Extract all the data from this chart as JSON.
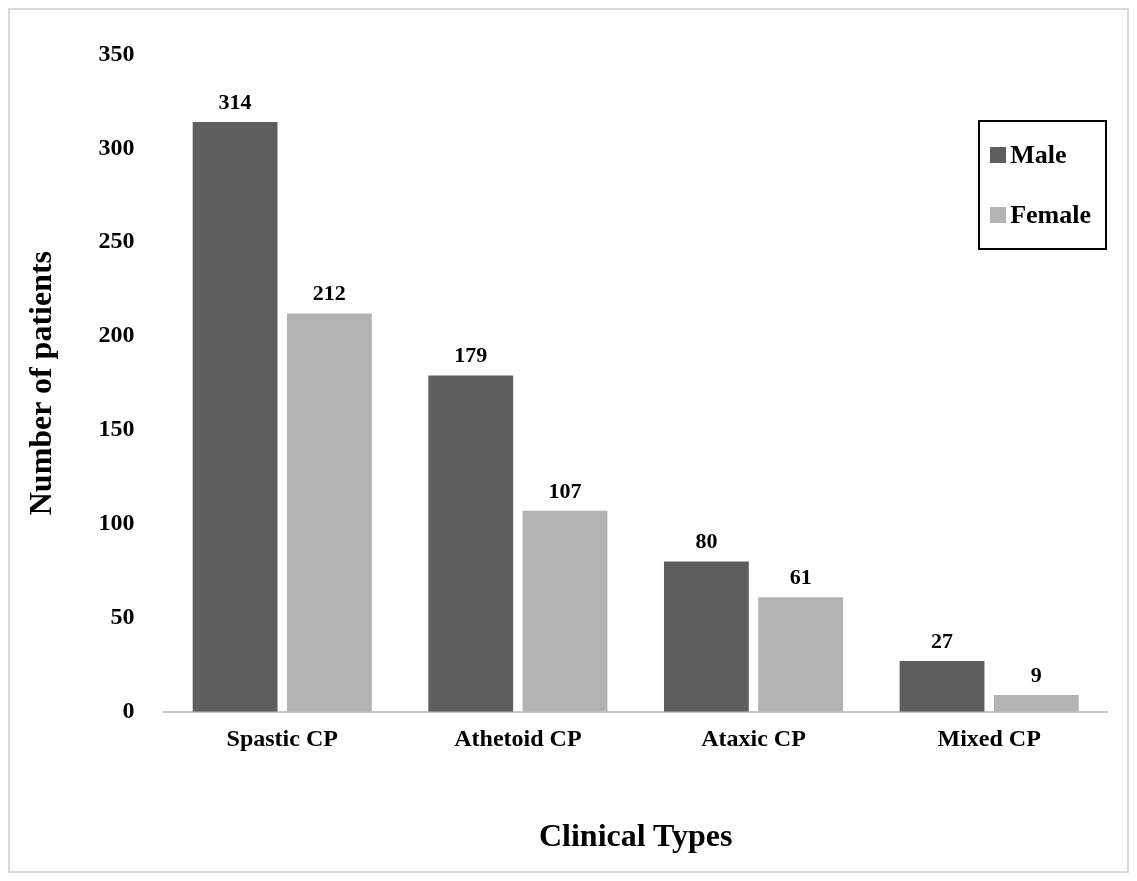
{
  "chart_data": {
    "type": "bar",
    "xlabel": "Clinical Types",
    "ylabel": "Number of patients",
    "categories": [
      "Spastic CP",
      "Athetoid CP",
      "Ataxic CP",
      "Mixed CP"
    ],
    "series": [
      {
        "name": "Male",
        "color": "#5e5e5e",
        "values": [
          314,
          179,
          80,
          27
        ]
      },
      {
        "name": "Female",
        "color": "#b3b3b3",
        "values": [
          212,
          107,
          61,
          9
        ]
      }
    ],
    "ylim": [
      0,
      350
    ],
    "yticks": [
      0,
      50,
      100,
      150,
      200,
      250,
      300,
      350
    ],
    "grid": false,
    "legend": "top right",
    "data_labels": true
  }
}
